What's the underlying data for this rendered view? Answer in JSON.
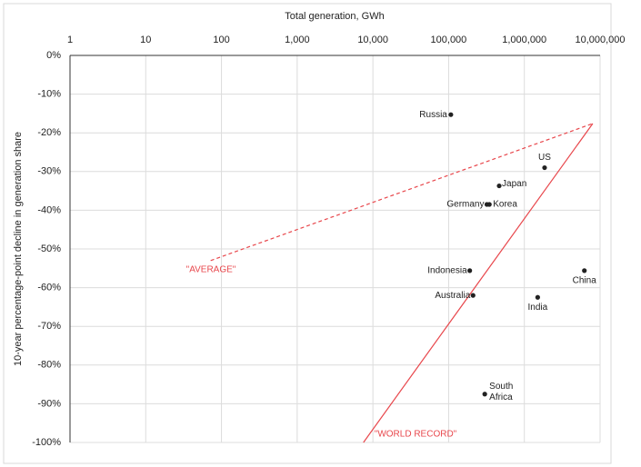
{
  "chart_data": {
    "type": "scatter",
    "x_label": "Total generation, GWh",
    "y_label": "10-year percentage-point decline in generation share",
    "log_x": true,
    "grid": true,
    "color": "#222222",
    "xlim": [
      1,
      10000000
    ],
    "xticks": [
      1,
      10,
      100,
      {
        "value": 1000,
        "label": "1,000"
      },
      {
        "value": 10000,
        "label": "10,000"
      },
      {
        "value": 100000,
        "label": "100,000"
      },
      {
        "value": 1000000,
        "label": "1,000,000"
      },
      {
        "value": 10000000,
        "label": "10,000,000"
      }
    ],
    "ylim": [
      -100,
      0
    ],
    "yticks": [
      {
        "value": 0,
        "label": "0%"
      },
      {
        "value": -10,
        "label": "-10%"
      },
      {
        "value": -20,
        "label": "-20%"
      },
      {
        "value": -30,
        "label": "-30%"
      },
      {
        "value": -40,
        "label": "-40%"
      },
      {
        "value": -50,
        "label": "-50%"
      },
      {
        "value": -60,
        "label": "-60%"
      },
      {
        "value": -70,
        "label": "-70%"
      },
      {
        "value": -80,
        "label": "-80%"
      },
      {
        "value": -90,
        "label": "-90%"
      },
      {
        "value": -100,
        "label": "-100%"
      }
    ],
    "labels": [
      "Russia",
      "US",
      "Japan",
      "Germany",
      "Korea",
      "Indonesia",
      "Australia",
      "China",
      "India",
      "South Africa"
    ],
    "x": [
      107000,
      1850000,
      465000,
      320000,
      345000,
      190000,
      210000,
      6200000,
      1500000,
      300000
    ],
    "values": [
      -15.3,
      -29,
      -33.7,
      -38.5,
      -38.5,
      -55.6,
      -62,
      -55.6,
      -62.5,
      -87.5
    ],
    "lines": [
      {
        "name": "\"AVERAGE\"",
        "color": "#e8474c",
        "dashed": true,
        "x": [
          72,
          8000000
        ],
        "values": [
          -53,
          -17.6
        ]
      },
      {
        "name": "\"WORLD RECORD\"",
        "color": "#e8474c",
        "dashed": false,
        "x": [
          7500,
          8000000
        ],
        "values": [
          -100,
          -17.6
        ]
      }
    ]
  }
}
